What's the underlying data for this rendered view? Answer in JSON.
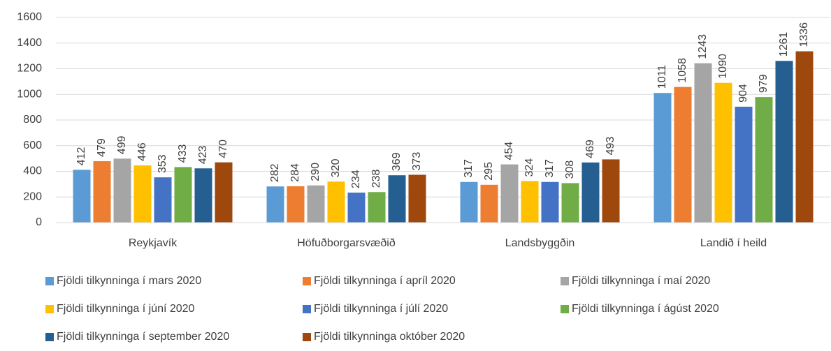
{
  "chart_data": {
    "type": "bar",
    "categories": [
      "Reykjavík",
      "Höfuðborgarsvæðið",
      "Landsbyggðin",
      "Landið í heild"
    ],
    "series": [
      {
        "name": "Fjöldi tilkynninga í mars 2020",
        "color": "#5B9BD5",
        "values": [
          412,
          282,
          317,
          1011
        ]
      },
      {
        "name": "Fjöldi tilkynninga í apríl 2020",
        "color": "#ED7D31",
        "values": [
          479,
          284,
          295,
          1058
        ]
      },
      {
        "name": "Fjöldi tilkynninga í maí 2020",
        "color": "#A5A5A5",
        "values": [
          499,
          290,
          454,
          1243
        ]
      },
      {
        "name": "Fjöldi tilkynninga í júní 2020",
        "color": "#FFC000",
        "values": [
          446,
          320,
          324,
          1090
        ]
      },
      {
        "name": "Fjöldi tilkynninga í júlí 2020",
        "color": "#4472C4",
        "values": [
          353,
          234,
          317,
          904
        ]
      },
      {
        "name": "Fjöldi tilkynninga í ágúst 2020",
        "color": "#70AD47",
        "values": [
          433,
          238,
          308,
          979
        ]
      },
      {
        "name": "Fjöldi tilkynninga í september 2020",
        "color": "#255E91",
        "values": [
          423,
          369,
          469,
          1261
        ]
      },
      {
        "name": "Fjöldi tilkynninga október 2020",
        "color": "#9E480E",
        "values": [
          470,
          373,
          493,
          1336
        ]
      }
    ],
    "ylim": [
      0,
      1600
    ],
    "yticks": [
      0,
      200,
      400,
      600,
      800,
      1000,
      1200,
      1400,
      1600
    ],
    "grid": true
  }
}
